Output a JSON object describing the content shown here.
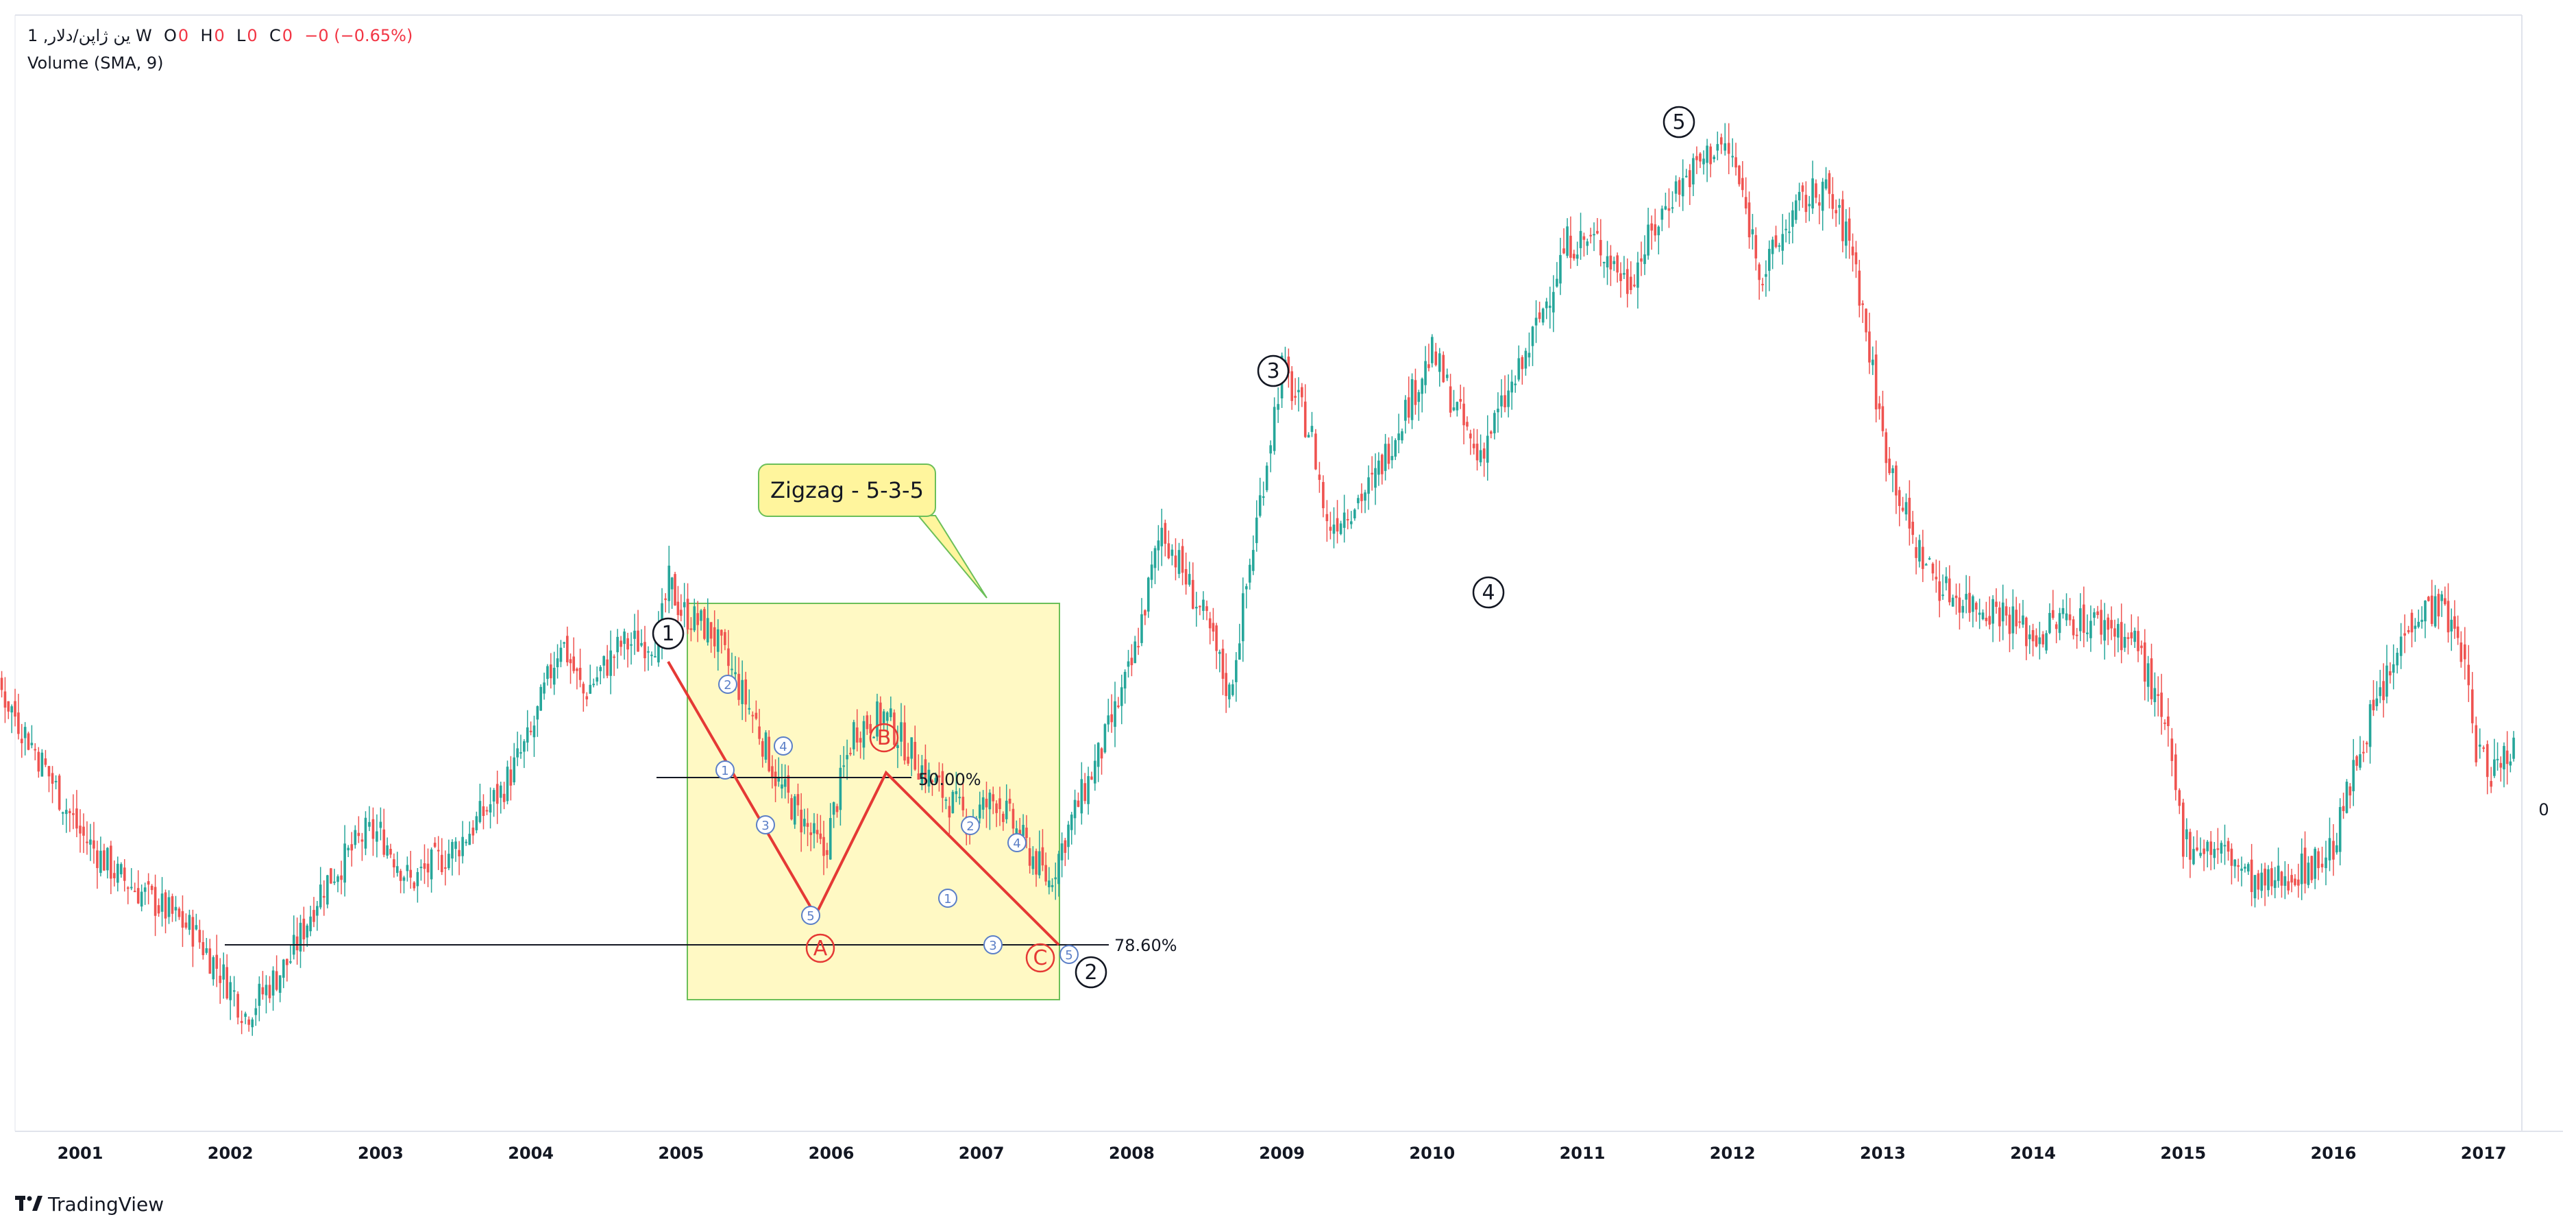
{
  "legend": {
    "symbol": "1 ,ین ژاپن/دلار W",
    "open_label": "O",
    "open_value": "0",
    "high_label": "H",
    "high_value": "0",
    "low_label": "L",
    "low_value": "0",
    "close_label": "C",
    "close_value": "0",
    "change": "−0 (−0.65%)",
    "volume": "Volume (SMA, 9)"
  },
  "price_scale_value": "0",
  "brand": "TradingView",
  "colors": {
    "up": "#26a69a",
    "down": "#ef5350",
    "box_fill": "#fff9c4",
    "box_border": "#6bbf59",
    "wave_red": "#e53935",
    "wave_blue": "#5b7fc7"
  },
  "chart_data": {
    "type": "candlestick",
    "title": "",
    "x_axis": [
      "2001",
      "2002",
      "2003",
      "2004",
      "2005",
      "2006",
      "2007",
      "2008",
      "2009",
      "2010",
      "2011",
      "2012",
      "2013",
      "2014",
      "2015",
      "2016",
      "2017"
    ],
    "series": [
      {
        "values": [
          [
            2000.0,
            0.5
          ],
          [
            2000.3,
            0.55
          ],
          [
            2000.7,
            0.4
          ],
          [
            2001.0,
            0.28
          ],
          [
            2001.25,
            0.22
          ],
          [
            2001.5,
            0.18
          ],
          [
            2001.75,
            0.14
          ],
          [
            2002.0,
            0.06
          ],
          [
            2002.1,
            0.02
          ],
          [
            2002.4,
            0.1
          ],
          [
            2002.6,
            0.2
          ],
          [
            2002.9,
            0.28
          ],
          [
            2003.0,
            0.28
          ],
          [
            2003.2,
            0.21
          ],
          [
            2003.5,
            0.26
          ],
          [
            2003.8,
            0.34
          ],
          [
            2004.0,
            0.42
          ],
          [
            2004.2,
            0.56
          ],
          [
            2004.35,
            0.48
          ],
          [
            2004.6,
            0.55
          ],
          [
            2004.85,
            0.56
          ],
          [
            2004.92,
            0.64
          ],
          [
            2005.0,
            0.6
          ],
          [
            2005.2,
            0.57
          ],
          [
            2005.5,
            0.44
          ],
          [
            2005.65,
            0.35
          ],
          [
            2005.8,
            0.3
          ],
          [
            2005.95,
            0.25
          ],
          [
            2006.15,
            0.43
          ],
          [
            2006.35,
            0.45
          ],
          [
            2006.65,
            0.36
          ],
          [
            2006.9,
            0.3
          ],
          [
            2007.1,
            0.33
          ],
          [
            2007.3,
            0.26
          ],
          [
            2007.45,
            0.21
          ],
          [
            2007.6,
            0.3
          ],
          [
            2007.8,
            0.4
          ],
          [
            2008.0,
            0.52
          ],
          [
            2008.2,
            0.72
          ],
          [
            2008.5,
            0.58
          ],
          [
            2008.65,
            0.48
          ],
          [
            2008.9,
            0.82
          ],
          [
            2009.0,
            0.95
          ],
          [
            2009.2,
            0.85
          ],
          [
            2009.3,
            0.72
          ],
          [
            2009.6,
            0.78
          ],
          [
            2009.8,
            0.88
          ],
          [
            2010.0,
            0.97
          ],
          [
            2010.1,
            0.92
          ],
          [
            2010.3,
            0.82
          ],
          [
            2010.6,
            0.95
          ],
          [
            2010.9,
            1.13
          ],
          [
            2011.1,
            1.13
          ],
          [
            2011.3,
            1.07
          ],
          [
            2011.6,
            1.2
          ],
          [
            2011.9,
            1.27
          ],
          [
            2012.0,
            1.25
          ],
          [
            2012.2,
            1.08
          ],
          [
            2012.4,
            1.17
          ],
          [
            2012.6,
            1.21
          ],
          [
            2012.8,
            1.12
          ],
          [
            2013.0,
            0.85
          ],
          [
            2013.2,
            0.7
          ],
          [
            2013.4,
            0.63
          ],
          [
            2013.6,
            0.61
          ],
          [
            2013.8,
            0.6
          ],
          [
            2014.0,
            0.56
          ],
          [
            2014.2,
            0.59
          ],
          [
            2014.5,
            0.58
          ],
          [
            2014.7,
            0.55
          ],
          [
            2014.9,
            0.41
          ],
          [
            2015.0,
            0.27
          ],
          [
            2015.3,
            0.25
          ],
          [
            2015.5,
            0.2
          ],
          [
            2015.7,
            0.22
          ],
          [
            2015.9,
            0.24
          ],
          [
            2016.0,
            0.26
          ],
          [
            2016.2,
            0.42
          ],
          [
            2016.4,
            0.52
          ],
          [
            2016.5,
            0.59
          ],
          [
            2016.7,
            0.61
          ],
          [
            2016.85,
            0.55
          ],
          [
            2016.95,
            0.4
          ],
          [
            2017.05,
            0.37
          ],
          [
            2017.2,
            0.41
          ]
        ]
      }
    ],
    "y_unit": "relative",
    "annotations": {
      "box_label": "Zigzag - 5-3-5",
      "fib_levels": [
        "50.00%",
        "78.60%"
      ],
      "waves_major": [
        "1",
        "2",
        "3",
        "4",
        "5"
      ],
      "waves_corrective": [
        "A",
        "B",
        "C"
      ],
      "waves_minor_a": [
        "1",
        "2",
        "3",
        "4",
        "5"
      ],
      "waves_minor_c": [
        "1",
        "2",
        "3",
        "4",
        "5"
      ]
    }
  }
}
